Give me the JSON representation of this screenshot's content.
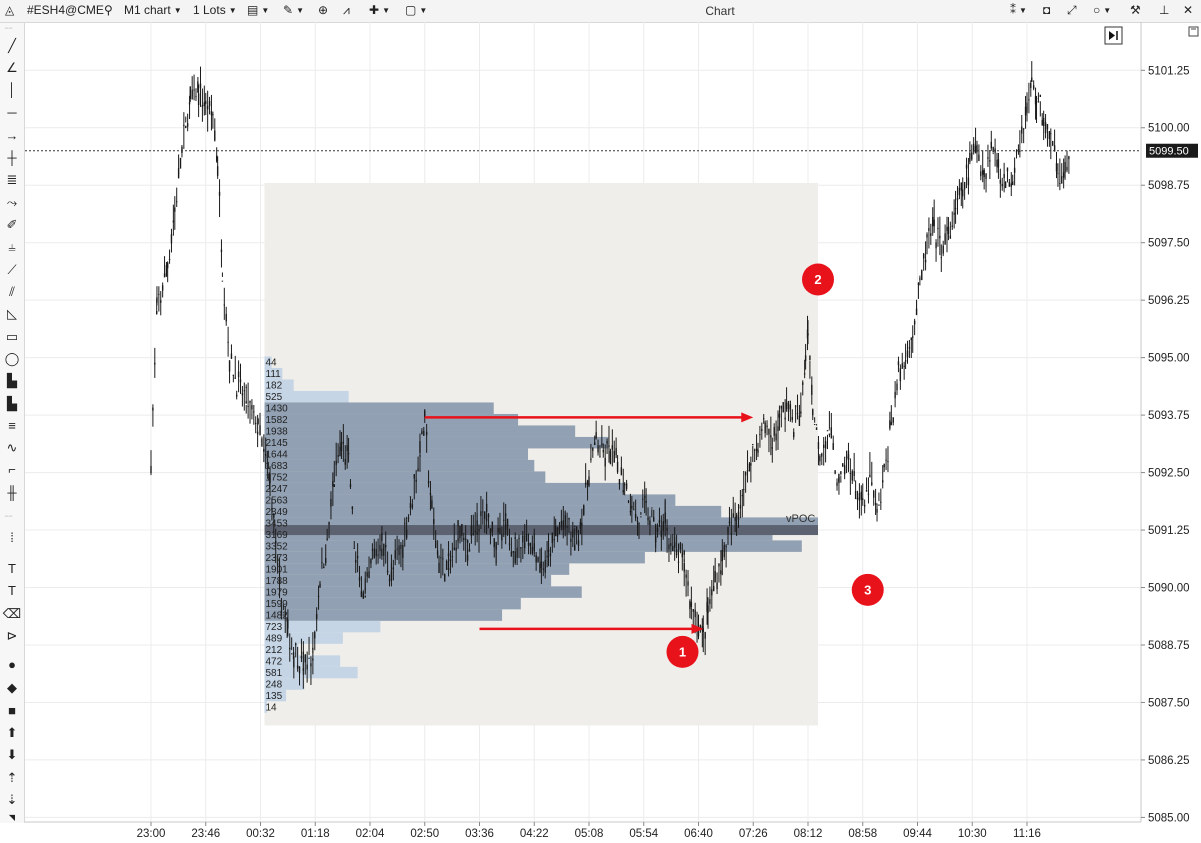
{
  "window": {
    "title": "Chart"
  },
  "toolbar": {
    "symbol": "#ESH4@CME",
    "chart_type": "M1 chart",
    "lots": "1 Lots",
    "icons": [
      "logo-icon",
      "search-icon",
      "template-icon",
      "pencil-icon",
      "zoom-icon",
      "indicator-icon",
      "crosshair-icon",
      "window-icon"
    ],
    "right_icons": [
      "link-icon",
      "camera-icon",
      "fullscreen-icon",
      "circle-icon",
      "settings-icon",
      "pin-icon",
      "close-icon"
    ]
  },
  "left_tools": [
    "line-icon",
    "angle-icon",
    "vertical-line-icon",
    "horizontal-line-icon",
    "arrow-icon",
    "cross-icon",
    "fib-icon",
    "polyline-icon",
    "brush-icon",
    "fork-icon",
    "ruler-icon",
    "channel-icon",
    "triangle-icon",
    "rectangle-icon",
    "ellipse-icon",
    "bars-icon",
    "bars2-icon",
    "levels-icon",
    "wave-icon",
    "steps-icon",
    "candles-icon",
    "text-box-icon",
    "text-icon",
    "callout-icon",
    "tag-icon",
    "circle-fill-icon",
    "diamond-icon",
    "square-icon",
    "arrow-up-icon",
    "arrow-down-icon",
    "sort-up-icon",
    "sort-down-icon"
  ],
  "colors": {
    "candle": "#1a1a1a",
    "profile_dark": "#8092a8",
    "profile_light": "#bdd0e4",
    "vpoc": "#5c6270",
    "range_bg": "#efeeea",
    "arrow": "#e8121b",
    "badge": "#e8121b"
  },
  "chart_data": {
    "type": "candlestick_with_volume_profile",
    "y_axis": {
      "min": 5084.9,
      "max": 5102.3,
      "ticks": [
        "5101.25",
        "5100.00",
        "5098.75",
        "5097.50",
        "5096.25",
        "5095.00",
        "5093.75",
        "5092.50",
        "5091.25",
        "5090.00",
        "5088.75",
        "5087.50",
        "5086.25",
        "5085.00"
      ],
      "current_price": "5099.50"
    },
    "x_axis": {
      "ticks": [
        "23:00",
        "23:46",
        "00:32",
        "01:18",
        "02:04",
        "02:50",
        "03:36",
        "04:22",
        "05:08",
        "05:54",
        "06:40",
        "07:26",
        "08:12",
        "08:58",
        "09:44",
        "10:30",
        "11:16"
      ]
    },
    "grid": true,
    "volume_profile": {
      "label": "vPOC",
      "vpoc_price": 5091.25,
      "range_high": 5098.8,
      "range_low": 5087.0,
      "levels": [
        {
          "price": 5094.9,
          "volume": "44"
        },
        {
          "price": 5094.65,
          "volume": "111"
        },
        {
          "price": 5094.4,
          "volume": "182"
        },
        {
          "price": 5094.15,
          "volume": "525"
        },
        {
          "price": 5093.9,
          "volume": "1430"
        },
        {
          "price": 5093.65,
          "volume": "1582"
        },
        {
          "price": 5093.4,
          "volume": "1938"
        },
        {
          "price": 5093.15,
          "volume": "2145"
        },
        {
          "price": 5092.9,
          "volume": "1644"
        },
        {
          "price": 5092.65,
          "volume": "1683"
        },
        {
          "price": 5092.4,
          "volume": "1752"
        },
        {
          "price": 5092.15,
          "volume": "2247"
        },
        {
          "price": 5091.9,
          "volume": "2563"
        },
        {
          "price": 5091.65,
          "volume": "2849"
        },
        {
          "price": 5091.4,
          "volume": "3453"
        },
        {
          "price": 5091.15,
          "volume": "3169"
        },
        {
          "price": 5090.9,
          "volume": "3352"
        },
        {
          "price": 5090.65,
          "volume": "2373"
        },
        {
          "price": 5090.4,
          "volume": "1901"
        },
        {
          "price": 5090.15,
          "volume": "1788"
        },
        {
          "price": 5089.9,
          "volume": "1979"
        },
        {
          "price": 5089.65,
          "volume": "1599"
        },
        {
          "price": 5089.4,
          "volume": "1482"
        },
        {
          "price": 5089.15,
          "volume": "723"
        },
        {
          "price": 5088.9,
          "volume": "489"
        },
        {
          "price": 5088.65,
          "volume": "212"
        },
        {
          "price": 5088.4,
          "volume": "472"
        },
        {
          "price": 5088.15,
          "volume": "581"
        },
        {
          "price": 5087.9,
          "volume": "248"
        },
        {
          "price": 5087.65,
          "volume": "135"
        },
        {
          "price": 5087.4,
          "volume": "14"
        }
      ]
    },
    "annotations": [
      {
        "label": "1",
        "price": 5088.6,
        "time": "06:40"
      },
      {
        "label": "2",
        "price": 5096.7,
        "time": "08:12"
      },
      {
        "label": "3",
        "price": 5089.95,
        "time": "08:58"
      }
    ],
    "arrows": [
      {
        "price": 5093.7,
        "from_time": "02:50",
        "to_time": "07:26"
      },
      {
        "price": 5089.1,
        "from_time": "03:36",
        "to_time": "06:40"
      }
    ],
    "price_path": [
      {
        "time": "23:00",
        "price": 5092.8
      },
      {
        "time": "23:05",
        "price": 5096.0
      },
      {
        "time": "23:14",
        "price": 5097.0
      },
      {
        "time": "23:20",
        "price": 5098.2
      },
      {
        "time": "23:26",
        "price": 5099.5
      },
      {
        "time": "23:33",
        "price": 5100.6
      },
      {
        "time": "23:40",
        "price": 5100.8
      },
      {
        "time": "23:46",
        "price": 5100.5
      },
      {
        "time": "23:52",
        "price": 5100.3
      },
      {
        "time": "23:56",
        "price": 5099.2
      },
      {
        "time": "00:00",
        "price": 5097.0
      },
      {
        "time": "00:06",
        "price": 5095.0
      },
      {
        "time": "00:12",
        "price": 5094.5
      },
      {
        "time": "00:20",
        "price": 5094.0
      },
      {
        "time": "00:30",
        "price": 5093.5
      },
      {
        "time": "00:40",
        "price": 5092.3
      },
      {
        "time": "00:48",
        "price": 5090.0
      },
      {
        "time": "00:55",
        "price": 5089.0
      },
      {
        "time": "01:00",
        "price": 5088.6
      },
      {
        "time": "01:08",
        "price": 5088.3
      },
      {
        "time": "01:16",
        "price": 5088.5
      },
      {
        "time": "01:22",
        "price": 5090.2
      },
      {
        "time": "01:28",
        "price": 5091.0
      },
      {
        "time": "01:34",
        "price": 5092.4
      },
      {
        "time": "01:40",
        "price": 5093.1
      },
      {
        "time": "01:46",
        "price": 5092.8
      },
      {
        "time": "01:52",
        "price": 5090.5
      },
      {
        "time": "02:00",
        "price": 5089.8
      },
      {
        "time": "02:06",
        "price": 5090.6
      },
      {
        "time": "02:14",
        "price": 5091.0
      },
      {
        "time": "02:22",
        "price": 5090.3
      },
      {
        "time": "02:30",
        "price": 5090.8
      },
      {
        "time": "02:38",
        "price": 5091.8
      },
      {
        "time": "02:46",
        "price": 5093.0
      },
      {
        "time": "02:50",
        "price": 5093.6
      },
      {
        "time": "02:56",
        "price": 5091.6
      },
      {
        "time": "03:02",
        "price": 5090.6
      },
      {
        "time": "03:10",
        "price": 5090.4
      },
      {
        "time": "03:18",
        "price": 5091.2
      },
      {
        "time": "03:26",
        "price": 5090.9
      },
      {
        "time": "03:34",
        "price": 5091.3
      },
      {
        "time": "03:42",
        "price": 5091.6
      },
      {
        "time": "03:50",
        "price": 5091.0
      },
      {
        "time": "03:58",
        "price": 5091.3
      },
      {
        "time": "04:06",
        "price": 5090.8
      },
      {
        "time": "04:14",
        "price": 5091.1
      },
      {
        "time": "04:22",
        "price": 5090.9
      },
      {
        "time": "04:28",
        "price": 5090.4
      },
      {
        "time": "04:34",
        "price": 5090.6
      },
      {
        "time": "04:40",
        "price": 5091.2
      },
      {
        "time": "04:48",
        "price": 5091.4
      },
      {
        "time": "04:56",
        "price": 5091.0
      },
      {
        "time": "05:02",
        "price": 5091.5
      },
      {
        "time": "05:08",
        "price": 5092.5
      },
      {
        "time": "05:14",
        "price": 5093.2
      },
      {
        "time": "05:20",
        "price": 5092.8
      },
      {
        "time": "05:26",
        "price": 5093.0
      },
      {
        "time": "05:32",
        "price": 5092.6
      },
      {
        "time": "05:38",
        "price": 5092.3
      },
      {
        "time": "05:44",
        "price": 5091.8
      },
      {
        "time": "05:50",
        "price": 5091.4
      },
      {
        "time": "05:56",
        "price": 5091.8
      },
      {
        "time": "06:04",
        "price": 5091.2
      },
      {
        "time": "06:12",
        "price": 5091.4
      },
      {
        "time": "06:20",
        "price": 5090.8
      },
      {
        "time": "06:28",
        "price": 5090.5
      },
      {
        "time": "06:34",
        "price": 5089.6
      },
      {
        "time": "06:40",
        "price": 5089.2
      },
      {
        "time": "06:44",
        "price": 5088.9
      },
      {
        "time": "06:48",
        "price": 5089.5
      },
      {
        "time": "06:54",
        "price": 5090.2
      },
      {
        "time": "07:00",
        "price": 5090.6
      },
      {
        "time": "07:06",
        "price": 5091.2
      },
      {
        "time": "07:12",
        "price": 5091.6
      },
      {
        "time": "07:18",
        "price": 5092.2
      },
      {
        "time": "07:24",
        "price": 5092.8
      },
      {
        "time": "07:30",
        "price": 5093.2
      },
      {
        "time": "07:36",
        "price": 5093.5
      },
      {
        "time": "07:42",
        "price": 5093.2
      },
      {
        "time": "07:48",
        "price": 5093.6
      },
      {
        "time": "07:54",
        "price": 5094.0
      },
      {
        "time": "08:00",
        "price": 5093.6
      },
      {
        "time": "08:06",
        "price": 5093.8
      },
      {
        "time": "08:10",
        "price": 5095.0
      },
      {
        "time": "08:12",
        "price": 5095.6
      },
      {
        "time": "08:16",
        "price": 5093.9
      },
      {
        "time": "08:22",
        "price": 5093.0
      },
      {
        "time": "08:30",
        "price": 5093.4
      },
      {
        "time": "08:38",
        "price": 5092.2
      },
      {
        "time": "08:46",
        "price": 5092.8
      },
      {
        "time": "08:52",
        "price": 5092.2
      },
      {
        "time": "08:58",
        "price": 5091.7
      },
      {
        "time": "09:04",
        "price": 5092.4
      },
      {
        "time": "09:10",
        "price": 5091.6
      },
      {
        "time": "09:16",
        "price": 5092.4
      },
      {
        "time": "09:22",
        "price": 5093.6
      },
      {
        "time": "09:28",
        "price": 5094.6
      },
      {
        "time": "09:34",
        "price": 5095.0
      },
      {
        "time": "09:40",
        "price": 5095.6
      },
      {
        "time": "09:46",
        "price": 5096.5
      },
      {
        "time": "09:52",
        "price": 5097.5
      },
      {
        "time": "09:58",
        "price": 5097.8
      },
      {
        "time": "10:04",
        "price": 5097.4
      },
      {
        "time": "10:10",
        "price": 5097.6
      },
      {
        "time": "10:16",
        "price": 5098.2
      },
      {
        "time": "10:22",
        "price": 5098.6
      },
      {
        "time": "10:28",
        "price": 5099.2
      },
      {
        "time": "10:34",
        "price": 5099.6
      },
      {
        "time": "10:40",
        "price": 5099.0
      },
      {
        "time": "10:46",
        "price": 5099.6
      },
      {
        "time": "10:52",
        "price": 5099.2
      },
      {
        "time": "10:58",
        "price": 5098.8
      },
      {
        "time": "11:04",
        "price": 5099.0
      },
      {
        "time": "11:10",
        "price": 5099.8
      },
      {
        "time": "11:16",
        "price": 5100.4
      },
      {
        "time": "11:20",
        "price": 5101.0
      },
      {
        "time": "11:24",
        "price": 5100.6
      },
      {
        "time": "11:30",
        "price": 5100.2
      },
      {
        "time": "11:36",
        "price": 5099.6
      },
      {
        "time": "11:42",
        "price": 5099.2
      },
      {
        "time": "11:48",
        "price": 5099.0
      },
      {
        "time": "11:52",
        "price": 5099.4
      }
    ]
  }
}
